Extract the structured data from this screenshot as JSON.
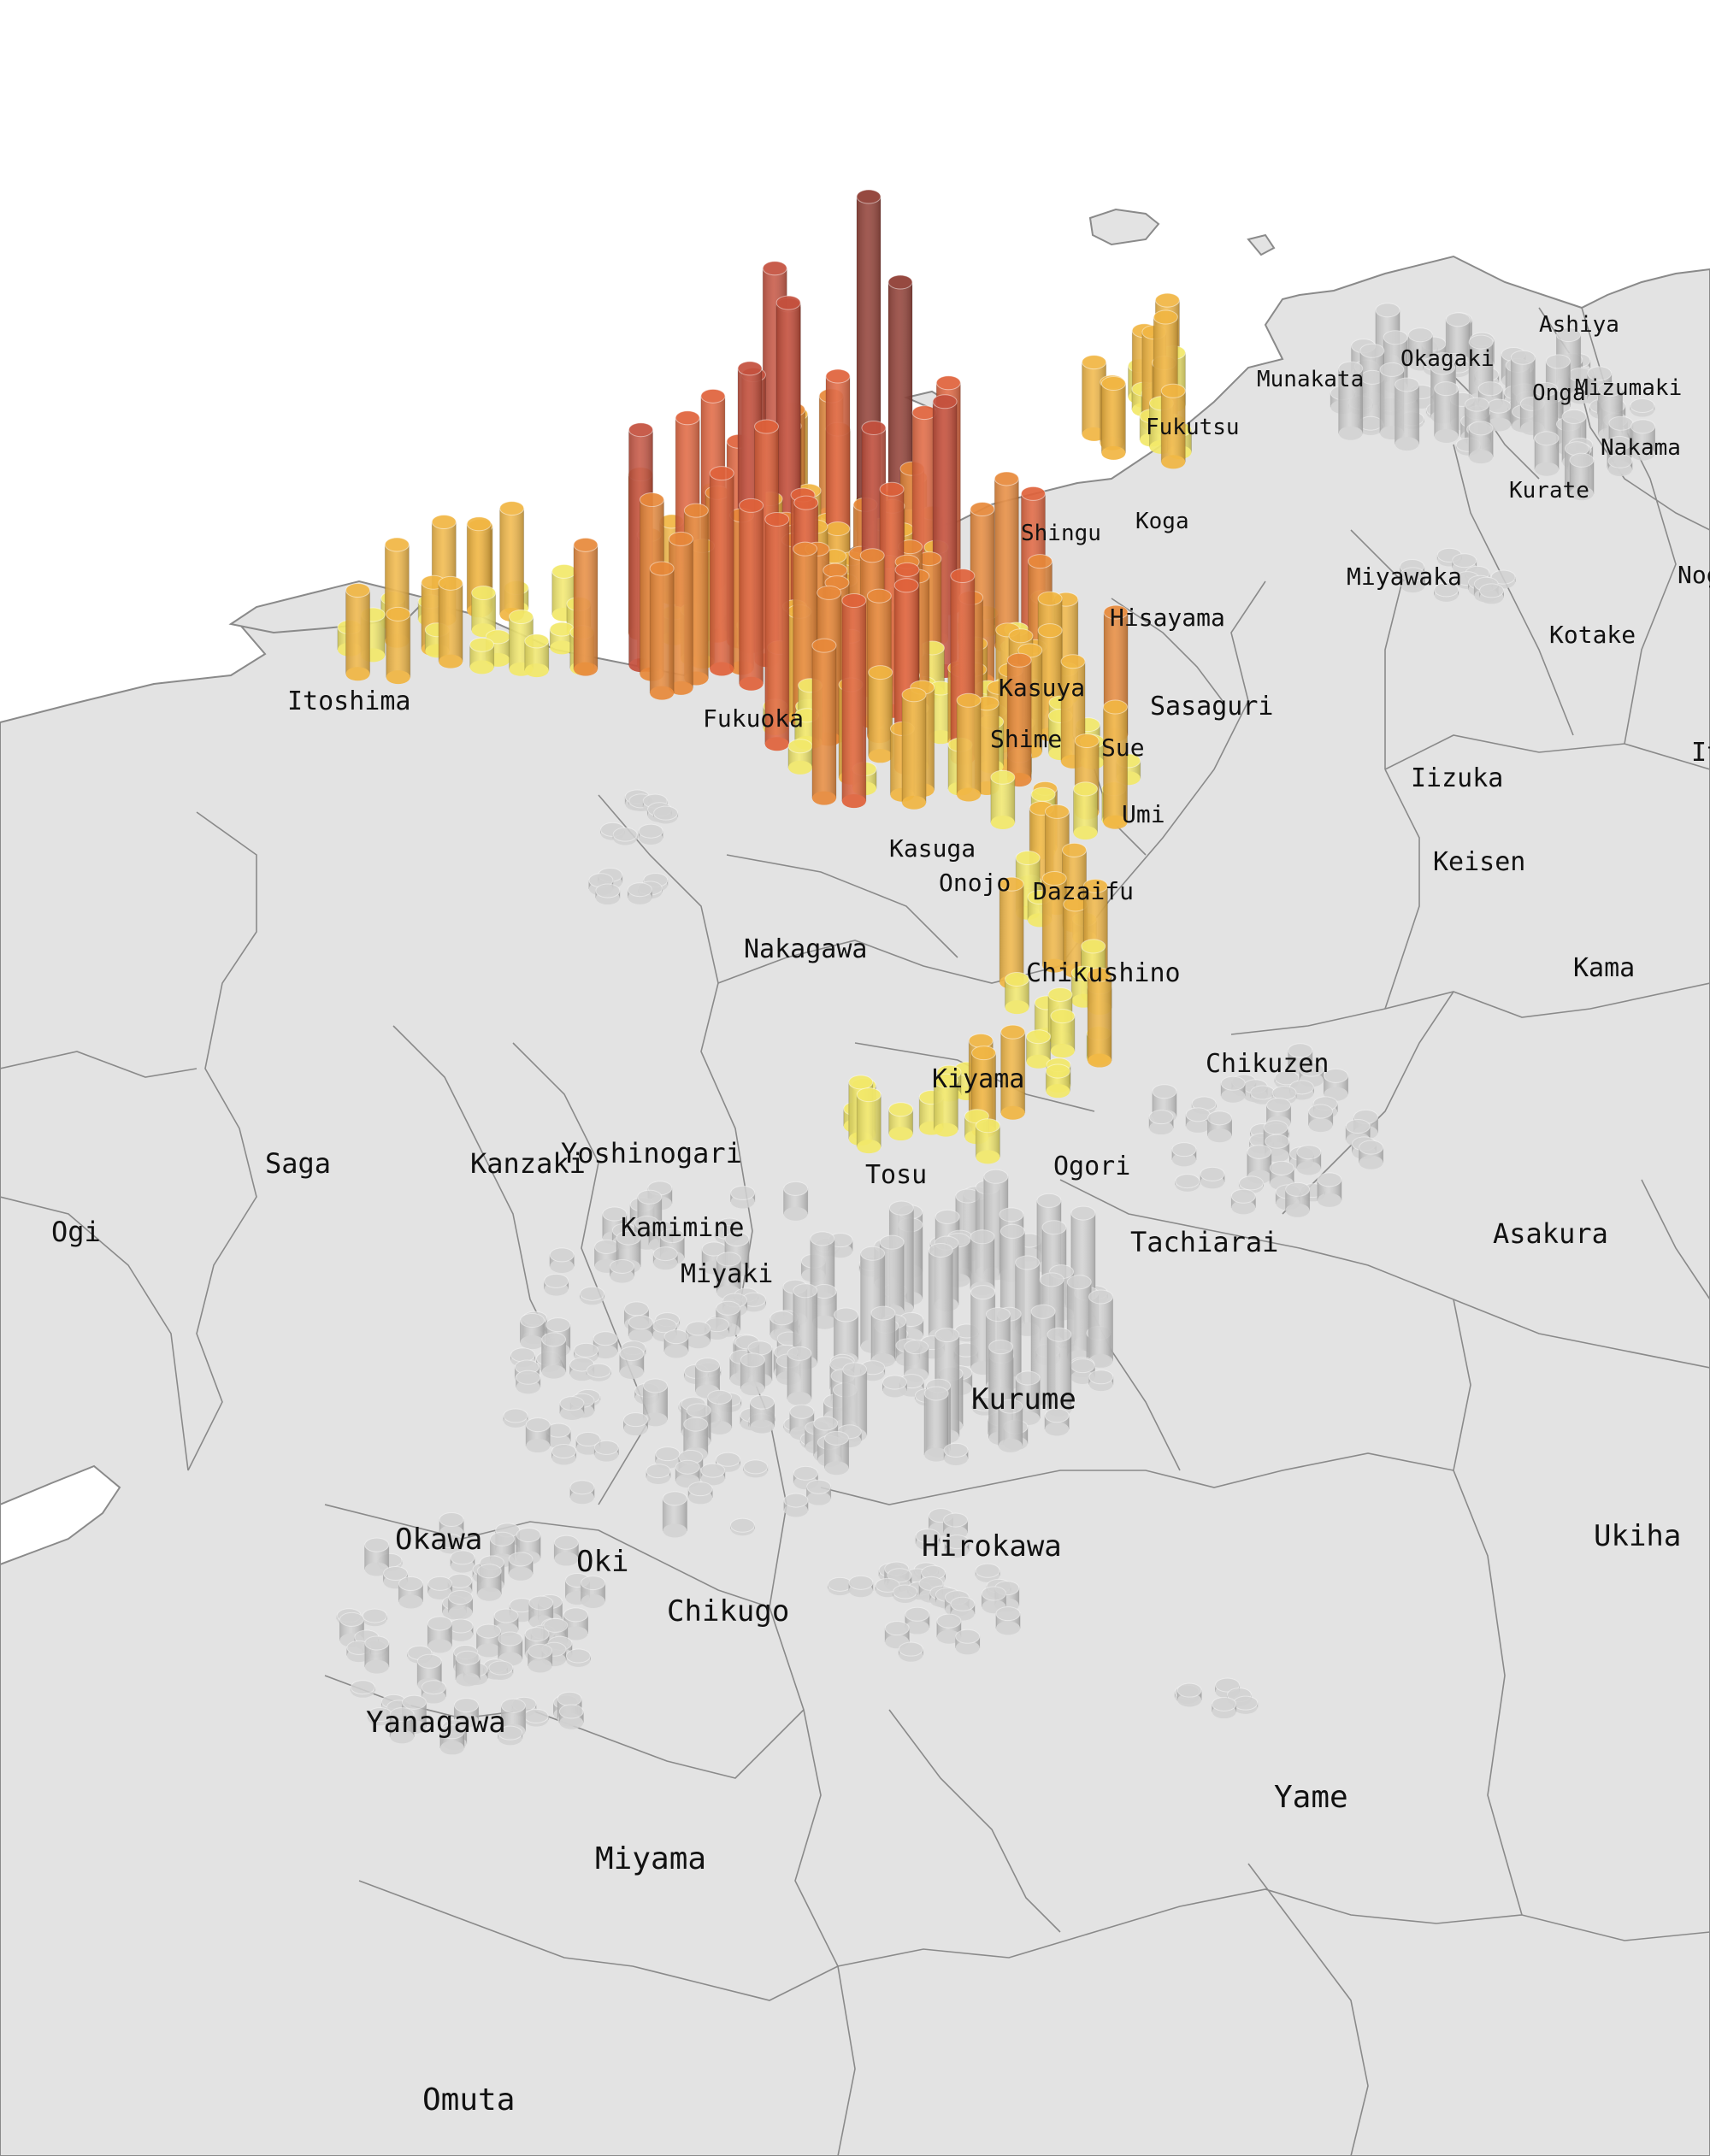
{
  "map": {
    "colors": {
      "background": "#ffffff",
      "land": "#e3e3e3",
      "border": "#8a8a8a",
      "label": "#111111",
      "column_ramp": [
        "#f3e96a",
        "#f1b643",
        "#e8893a",
        "#e0623b",
        "#c4503d",
        "#8e3a30"
      ],
      "column_inactive": "#d2d2d2"
    },
    "places": [
      {
        "name": "Ashiya"
      },
      {
        "name": "Okagaki"
      },
      {
        "name": "Munakata"
      },
      {
        "name": "Onga"
      },
      {
        "name": "Mizumaki"
      },
      {
        "name": "Nakama"
      },
      {
        "name": "Fukutsu"
      },
      {
        "name": "Kurate"
      },
      {
        "name": "Koga"
      },
      {
        "name": "Shingu"
      },
      {
        "name": "Miyawaka"
      },
      {
        "name": "Noga"
      },
      {
        "name": "Hisayama"
      },
      {
        "name": "Kotake"
      },
      {
        "name": "Itoshima"
      },
      {
        "name": "Kasuya"
      },
      {
        "name": "Sasaguri"
      },
      {
        "name": "Fukuoka"
      },
      {
        "name": "Shime"
      },
      {
        "name": "Sue"
      },
      {
        "name": "Iizuka"
      },
      {
        "name": "It"
      },
      {
        "name": "Umi"
      },
      {
        "name": "Kasuga"
      },
      {
        "name": "Keisen"
      },
      {
        "name": "Onojo"
      },
      {
        "name": "Dazaifu"
      },
      {
        "name": "Nakagawa"
      },
      {
        "name": "Kama"
      },
      {
        "name": "Chikushino"
      },
      {
        "name": "Chikuzen"
      },
      {
        "name": "Kiyama"
      },
      {
        "name": "Yoshinogari"
      },
      {
        "name": "Saga"
      },
      {
        "name": "Kanzaki"
      },
      {
        "name": "Tosu"
      },
      {
        "name": "Ogori"
      },
      {
        "name": "Ogi"
      },
      {
        "name": "Kamimine"
      },
      {
        "name": "Asakura"
      },
      {
        "name": "Tachiarai"
      },
      {
        "name": "Miyaki"
      },
      {
        "name": "Kurume"
      },
      {
        "name": "Ukiha"
      },
      {
        "name": "Okawa"
      },
      {
        "name": "Oki"
      },
      {
        "name": "Hirokawa"
      },
      {
        "name": "Chikugo"
      },
      {
        "name": "Yanagawa"
      },
      {
        "name": "Yame"
      },
      {
        "name": "Miyama"
      },
      {
        "name": "Omuta"
      }
    ]
  }
}
